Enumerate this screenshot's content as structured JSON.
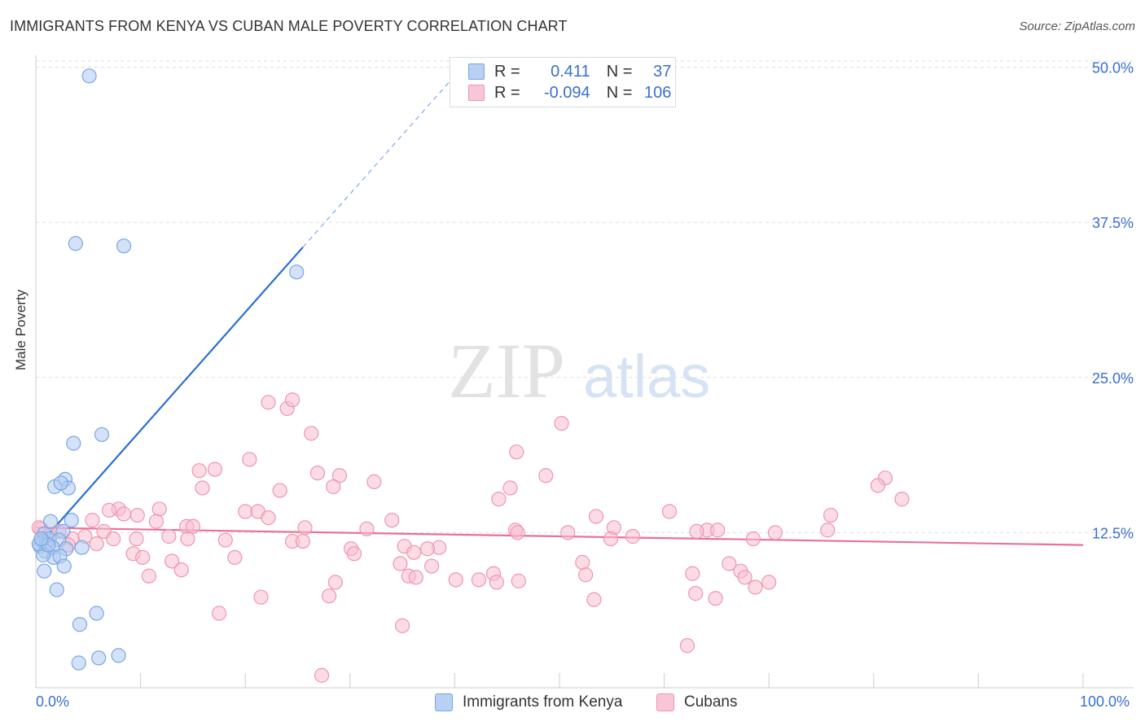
{
  "header": {
    "title": "IMMIGRANTS FROM KENYA VS CUBAN MALE POVERTY CORRELATION CHART",
    "source": "Source: ZipAtlas.com"
  },
  "watermark": {
    "zip": "ZIP",
    "atlas": "atlas"
  },
  "legend_top": {
    "rows": [
      {
        "r_label": "R =",
        "r_value": "0.411",
        "n_label": "N =",
        "n_value": "37"
      },
      {
        "r_label": "R =",
        "r_value": "-0.094",
        "n_label": "N =",
        "n_value": "106"
      }
    ]
  },
  "colors": {
    "kenya_fill": "#aecbf2",
    "kenya_stroke": "#7aa6e0",
    "kenya_line": "#2a6fd6",
    "cuban_fill": "#f7bfd0",
    "cuban_stroke": "#ee95b2",
    "cuban_line": "#e8709a",
    "tick_label": "#3a6fcf",
    "grid": "#dddddd"
  },
  "chart_data": {
    "type": "scatter",
    "title": "IMMIGRANTS FROM KENYA VS CUBAN MALE POVERTY CORRELATION CHART",
    "xlabel": "",
    "ylabel": "Male Poverty",
    "xlim": [
      0,
      100
    ],
    "ylim": [
      0,
      50.5
    ],
    "x_tick_labels": [
      {
        "value": 0,
        "label": "0.0%"
      },
      {
        "value": 100,
        "label": "100.0%"
      }
    ],
    "y_ticks": [
      {
        "value": 12.5,
        "label": "12.5%"
      },
      {
        "value": 25.0,
        "label": "25.0%"
      },
      {
        "value": 37.5,
        "label": "37.5%"
      },
      {
        "value": 50.0,
        "label": "50.0%"
      }
    ],
    "series": [
      {
        "name": "Immigrants from Kenya",
        "r": 0.411,
        "n": 37,
        "trend": {
          "x_start": 0.2,
          "y_start": 11.4,
          "x_end": 25.5,
          "y_end": 35.5,
          "x_dash_end": 40.0
        },
        "points": [
          [
            5.1,
            49.3
          ],
          [
            3.8,
            35.8
          ],
          [
            8.4,
            35.6
          ],
          [
            24.9,
            33.5
          ],
          [
            6.3,
            20.4
          ],
          [
            3.6,
            19.7
          ],
          [
            2.8,
            16.8
          ],
          [
            3.1,
            16.1
          ],
          [
            1.8,
            16.2
          ],
          [
            2.4,
            16.5
          ],
          [
            3.4,
            13.5
          ],
          [
            1.4,
            13.4
          ],
          [
            0.8,
            12.4
          ],
          [
            2.6,
            12.6
          ],
          [
            1.3,
            12.0
          ],
          [
            2.2,
            11.9
          ],
          [
            0.6,
            11.8
          ],
          [
            0.4,
            11.4
          ],
          [
            1.0,
            11.6
          ],
          [
            1.6,
            11.3
          ],
          [
            0.9,
            11.0
          ],
          [
            2.9,
            11.2
          ],
          [
            4.4,
            11.3
          ],
          [
            1.7,
            10.5
          ],
          [
            0.7,
            10.7
          ],
          [
            2.3,
            10.6
          ],
          [
            2.7,
            9.8
          ],
          [
            0.8,
            9.4
          ],
          [
            2.0,
            7.9
          ],
          [
            5.8,
            6.0
          ],
          [
            4.2,
            5.1
          ],
          [
            7.9,
            2.6
          ],
          [
            6.0,
            2.4
          ],
          [
            4.1,
            2.0
          ],
          [
            0.3,
            11.6
          ],
          [
            1.2,
            11.5
          ],
          [
            0.5,
            12.0
          ]
        ]
      },
      {
        "name": "Cubans",
        "r": -0.094,
        "n": 106,
        "trend": {
          "x_start": 0,
          "y_start": 12.9,
          "x_end": 100,
          "y_end": 11.5
        },
        "points": [
          [
            22.2,
            23.0
          ],
          [
            24.0,
            22.5
          ],
          [
            24.5,
            23.2
          ],
          [
            26.3,
            20.5
          ],
          [
            50.2,
            21.3
          ],
          [
            45.9,
            19.0
          ],
          [
            20.4,
            18.4
          ],
          [
            15.6,
            17.5
          ],
          [
            17.1,
            17.6
          ],
          [
            26.9,
            17.3
          ],
          [
            29.0,
            17.1
          ],
          [
            32.3,
            16.6
          ],
          [
            48.7,
            17.1
          ],
          [
            81.1,
            16.9
          ],
          [
            80.4,
            16.3
          ],
          [
            15.9,
            16.1
          ],
          [
            23.3,
            15.9
          ],
          [
            28.4,
            16.2
          ],
          [
            45.3,
            16.1
          ],
          [
            44.2,
            15.2
          ],
          [
            82.7,
            15.2
          ],
          [
            7.9,
            14.4
          ],
          [
            11.8,
            14.4
          ],
          [
            20.0,
            14.2
          ],
          [
            21.2,
            14.2
          ],
          [
            22.2,
            13.7
          ],
          [
            7.0,
            14.3
          ],
          [
            9.7,
            13.9
          ],
          [
            8.4,
            14.0
          ],
          [
            5.4,
            13.5
          ],
          [
            11.5,
            13.4
          ],
          [
            14.4,
            13.0
          ],
          [
            15.0,
            13.0
          ],
          [
            34.0,
            13.5
          ],
          [
            25.7,
            12.9
          ],
          [
            31.6,
            12.8
          ],
          [
            45.8,
            12.7
          ],
          [
            46.0,
            12.5
          ],
          [
            53.5,
            13.8
          ],
          [
            55.2,
            12.9
          ],
          [
            60.5,
            14.2
          ],
          [
            64.1,
            12.7
          ],
          [
            75.6,
            12.7
          ],
          [
            75.9,
            13.9
          ],
          [
            70.6,
            12.5
          ],
          [
            63.1,
            12.6
          ],
          [
            0.5,
            12.8
          ],
          [
            1.3,
            12.3
          ],
          [
            2.2,
            12.6
          ],
          [
            3.5,
            12.0
          ],
          [
            4.7,
            12.2
          ],
          [
            6.5,
            12.6
          ],
          [
            7.4,
            12.0
          ],
          [
            9.6,
            12.0
          ],
          [
            12.7,
            12.2
          ],
          [
            14.5,
            12.0
          ],
          [
            18.1,
            11.9
          ],
          [
            24.5,
            11.8
          ],
          [
            25.5,
            11.8
          ],
          [
            38.5,
            11.3
          ],
          [
            35.2,
            11.4
          ],
          [
            37.4,
            11.2
          ],
          [
            50.8,
            12.5
          ],
          [
            57.0,
            12.2
          ],
          [
            54.9,
            12.0
          ],
          [
            65.1,
            12.7
          ],
          [
            68.5,
            12.0
          ],
          [
            36.1,
            10.9
          ],
          [
            30.1,
            11.2
          ],
          [
            30.4,
            10.8
          ],
          [
            3.1,
            11.5
          ],
          [
            5.8,
            11.6
          ],
          [
            9.3,
            10.8
          ],
          [
            10.2,
            10.5
          ],
          [
            13.0,
            10.2
          ],
          [
            19.0,
            10.5
          ],
          [
            34.8,
            10.0
          ],
          [
            37.8,
            9.8
          ],
          [
            52.2,
            10.1
          ],
          [
            66.2,
            10.0
          ],
          [
            13.9,
            9.5
          ],
          [
            10.8,
            9.0
          ],
          [
            35.6,
            9.0
          ],
          [
            36.3,
            8.9
          ],
          [
            42.3,
            8.7
          ],
          [
            46.1,
            8.6
          ],
          [
            28.6,
            8.5
          ],
          [
            40.1,
            8.7
          ],
          [
            43.7,
            9.2
          ],
          [
            44.0,
            8.5
          ],
          [
            52.5,
            9.1
          ],
          [
            62.7,
            9.2
          ],
          [
            67.3,
            9.4
          ],
          [
            67.7,
            8.9
          ],
          [
            68.7,
            8.1
          ],
          [
            70.0,
            8.5
          ],
          [
            28.0,
            7.4
          ],
          [
            21.5,
            7.3
          ],
          [
            63.0,
            7.6
          ],
          [
            64.9,
            7.2
          ],
          [
            53.3,
            7.1
          ],
          [
            17.5,
            6.0
          ],
          [
            35.0,
            5.0
          ],
          [
            62.2,
            3.4
          ],
          [
            27.3,
            1.0
          ],
          [
            0.3,
            12.9
          ]
        ]
      }
    ]
  },
  "legend_bottom": {
    "items": [
      {
        "label": "Immigrants from Kenya"
      },
      {
        "label": "Cubans"
      }
    ]
  }
}
